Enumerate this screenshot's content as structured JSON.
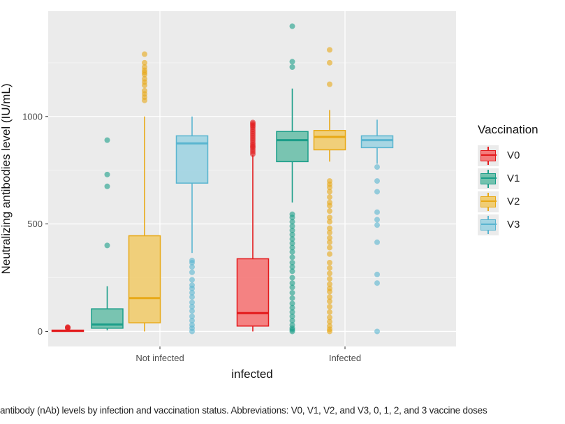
{
  "chart_data": {
    "type": "boxplot",
    "xlabel": "infected",
    "ylabel": "Neutralizing antibodies level (IU/mL)",
    "ylim": [
      -70,
      1490
    ],
    "yticks": [
      0,
      500,
      1000
    ],
    "categories": [
      "Not infected",
      "Infected"
    ],
    "grid": true,
    "legend_position": "right",
    "legend": {
      "title": "Vaccination",
      "entries": [
        "V0",
        "V1",
        "V2",
        "V3"
      ]
    },
    "series": [
      {
        "name": "V0",
        "color": "#e31a1c",
        "fill": "#f47c7c",
        "boxes": [
          {
            "category": "Not infected",
            "whisker_low": 0,
            "q1": 0,
            "median": 3,
            "q3": 6,
            "whisker_high": 12,
            "outliers": [
              15,
              18,
              20
            ]
          },
          {
            "category": "Infected",
            "whisker_low": 0,
            "q1": 25,
            "median": 85,
            "q3": 338,
            "whisker_high": 820,
            "outliers": [
              825,
              835,
              845,
              855,
              862,
              870,
              880,
              890,
              900,
              910,
              920,
              930,
              940,
              950,
              958,
              965,
              972
            ]
          }
        ]
      },
      {
        "name": "V1",
        "color": "#1b9e89",
        "fill": "#73c2ae",
        "boxes": [
          {
            "category": "Not infected",
            "whisker_low": 5,
            "q1": 15,
            "median": 32,
            "q3": 105,
            "whisker_high": 210,
            "outliers": [
              400,
              675,
              730,
              890
            ]
          },
          {
            "category": "Infected",
            "whisker_low": 600,
            "q1": 790,
            "median": 890,
            "q3": 930,
            "whisker_high": 1130,
            "outliers": [
              0,
              8,
              15,
              30,
              50,
              70,
              90,
              110,
              130,
              155,
              180,
              205,
              225,
              250,
              280,
              300,
              320,
              345,
              370,
              390,
              410,
              430,
              450,
              470,
              490,
              510,
              530,
              545,
              1230,
              1255,
              1420
            ]
          }
        ]
      },
      {
        "name": "V2",
        "color": "#e8a917",
        "fill": "#f0cd74",
        "boxes": [
          {
            "category": "Not infected",
            "whisker_low": 0,
            "q1": 40,
            "median": 155,
            "q3": 445,
            "whisker_high": 1000,
            "outliers": [
              1075,
              1090,
              1105,
              1120,
              1145,
              1160,
              1175,
              1195,
              1205,
              1215,
              1230,
              1250,
              1290
            ]
          },
          {
            "category": "Infected",
            "whisker_low": 790,
            "q1": 845,
            "median": 905,
            "q3": 935,
            "whisker_high": 1030,
            "outliers": [
              0,
              10,
              25,
              45,
              65,
              90,
              115,
              140,
              160,
              185,
              200,
              220,
              245,
              270,
              295,
              320,
              360,
              390,
              415,
              435,
              460,
              480,
              510,
              530,
              560,
              585,
              600,
              625,
              650,
              670,
              685,
              700,
              1150,
              1250,
              1310
            ]
          }
        ]
      },
      {
        "name": "V3",
        "color": "#5ab5d0",
        "fill": "#a3d5e3",
        "boxes": [
          {
            "category": "Not infected",
            "whisker_low": 365,
            "q1": 690,
            "median": 875,
            "q3": 910,
            "whisker_high": 1000,
            "outliers": [
              0,
              15,
              30,
              50,
              70,
              95,
              115,
              135,
              160,
              180,
              200,
              215,
              240,
              275,
              300,
              320,
              330
            ]
          },
          {
            "category": "Infected",
            "whisker_low": 780,
            "q1": 855,
            "median": 890,
            "q3": 910,
            "whisker_high": 985,
            "outliers": [
              0,
              225,
              265,
              415,
              495,
              520,
              555,
              650,
              700,
              765
            ]
          }
        ]
      }
    ]
  },
  "caption": "antibody (nAb) levels by infection and vaccination status. Abbreviations: V0, V1, V2, and V3, 0, 1, 2, and 3 vaccine doses"
}
